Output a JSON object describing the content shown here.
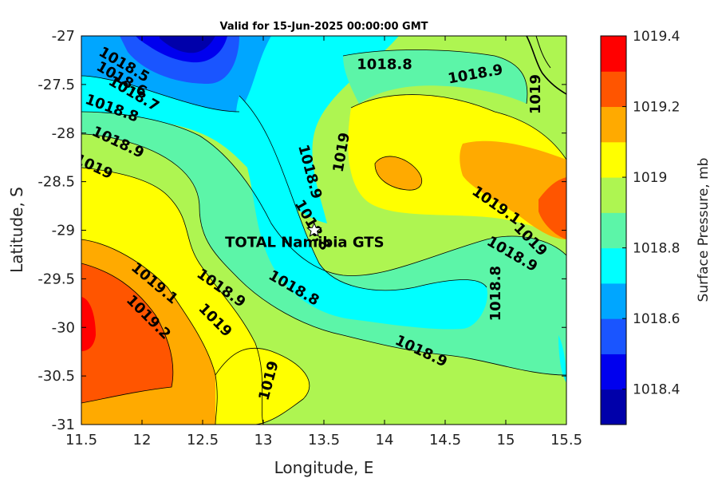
{
  "chart_data": {
    "type": "contour",
    "title": "Valid for 15-Jun-2025 00:00:00 GMT",
    "xlabel": "Longitude, E",
    "ylabel": "Latitude, S",
    "xlim": [
      11.5,
      15.5
    ],
    "ylim": [
      -31,
      -27
    ],
    "xticks": [
      "11.5",
      "12",
      "12.5",
      "13",
      "13.5",
      "14",
      "14.5",
      "15",
      "15.5"
    ],
    "yticks": [
      "-27",
      "-27.5",
      "-28",
      "-28.5",
      "-29",
      "-29.5",
      "-30",
      "-30.5",
      "-31"
    ],
    "colorbar": {
      "label": "Surface Pressure, mb",
      "min": 1018.3,
      "max": 1019.4,
      "ticks": [
        "1019.4",
        "1019.2",
        "1019",
        "1018.8",
        "1018.6",
        "1018.4"
      ],
      "levels": [
        {
          "value": 1018.3,
          "color": "#0000aa"
        },
        {
          "value": 1018.4,
          "color": "#0000ee"
        },
        {
          "value": 1018.5,
          "color": "#1a55ff"
        },
        {
          "value": 1018.6,
          "color": "#00a6ff"
        },
        {
          "value": 1018.7,
          "color": "#00ffff"
        },
        {
          "value": 1018.8,
          "color": "#5cf5a8"
        },
        {
          "value": 1018.9,
          "color": "#aef551"
        },
        {
          "value": 1019.0,
          "color": "#ffff00"
        },
        {
          "value": 1019.1,
          "color": "#ffaa00"
        },
        {
          "value": 1019.2,
          "color": "#ff5500"
        },
        {
          "value": 1019.3,
          "color": "#ff0000"
        },
        {
          "value": 1019.4,
          "color": "#aa0000"
        }
      ]
    },
    "contour_labels": [
      {
        "text": "1018.5",
        "lon": 11.85,
        "lat": -27.3,
        "angle": 30
      },
      {
        "text": "1018.6",
        "lon": 11.83,
        "lat": -27.45,
        "angle": 30
      },
      {
        "text": "1018.7",
        "lon": 11.93,
        "lat": -27.6,
        "angle": 30
      },
      {
        "text": "1018.8",
        "lon": 11.75,
        "lat": -27.75,
        "angle": 20
      },
      {
        "text": "1018.9",
        "lon": 11.8,
        "lat": -28.1,
        "angle": 25
      },
      {
        "text": "1019",
        "lon": 11.6,
        "lat": -28.35,
        "angle": 25
      },
      {
        "text": "1018.8",
        "lon": 14.0,
        "lat": -27.3,
        "angle": 0
      },
      {
        "text": "1018.9",
        "lon": 14.75,
        "lat": -27.4,
        "angle": -10
      },
      {
        "text": "1019",
        "lon": 15.25,
        "lat": -27.6,
        "angle": -90
      },
      {
        "text": "1019",
        "lon": 13.65,
        "lat": -28.2,
        "angle": -80
      },
      {
        "text": "1018.9",
        "lon": 13.38,
        "lat": -28.4,
        "angle": 75
      },
      {
        "text": "1018.8",
        "lon": 13.4,
        "lat": -28.95,
        "angle": 60
      },
      {
        "text": "1019.1",
        "lon": 14.92,
        "lat": -28.75,
        "angle": 35
      },
      {
        "text": "1019",
        "lon": 15.2,
        "lat": -29.1,
        "angle": 45
      },
      {
        "text": "1018.9",
        "lon": 15.05,
        "lat": -29.25,
        "angle": 30
      },
      {
        "text": "1018.8",
        "lon": 14.92,
        "lat": -29.65,
        "angle": -90
      },
      {
        "text": "1019.1",
        "lon": 12.1,
        "lat": -29.55,
        "angle": 40
      },
      {
        "text": "1019.2",
        "lon": 12.05,
        "lat": -29.9,
        "angle": 45
      },
      {
        "text": "1018.9",
        "lon": 12.65,
        "lat": -29.6,
        "angle": 35
      },
      {
        "text": "1019",
        "lon": 12.6,
        "lat": -29.93,
        "angle": 45
      },
      {
        "text": "1018.8",
        "lon": 13.25,
        "lat": -29.6,
        "angle": 30
      },
      {
        "text": "1018.9",
        "lon": 14.3,
        "lat": -30.25,
        "angle": 25
      },
      {
        "text": "1019",
        "lon": 13.05,
        "lat": -30.55,
        "angle": -75
      }
    ],
    "station": {
      "name": "TOTAL Namibia GTS",
      "lon": 13.42,
      "lat": -29.0
    }
  }
}
